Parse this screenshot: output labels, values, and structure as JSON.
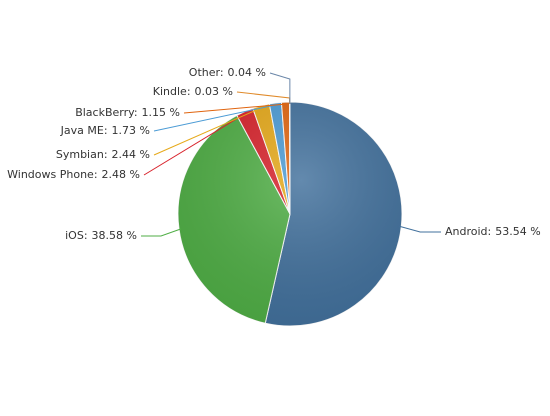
{
  "chart_data": {
    "type": "pie",
    "categories": [
      "Android",
      "iOS",
      "Windows Phone",
      "Symbian",
      "Java ME",
      "BlackBerry",
      "Kindle",
      "Other"
    ],
    "values": [
      53.54,
      38.58,
      2.48,
      2.44,
      1.73,
      1.15,
      0.03,
      0.04
    ],
    "value_labels": [
      "53.54 %",
      "38.58 %",
      "2.48 %",
      "2.44 %",
      "1.73 %",
      "1.15 %",
      "0.03 %",
      "0.04 %"
    ],
    "label_separator": ":",
    "colors": [
      "#41709c",
      "#4fae45",
      "#d8222b",
      "#e6a919",
      "#4b9bd5",
      "#e0640e",
      "#e08a2a",
      "#6a86a8"
    ]
  }
}
